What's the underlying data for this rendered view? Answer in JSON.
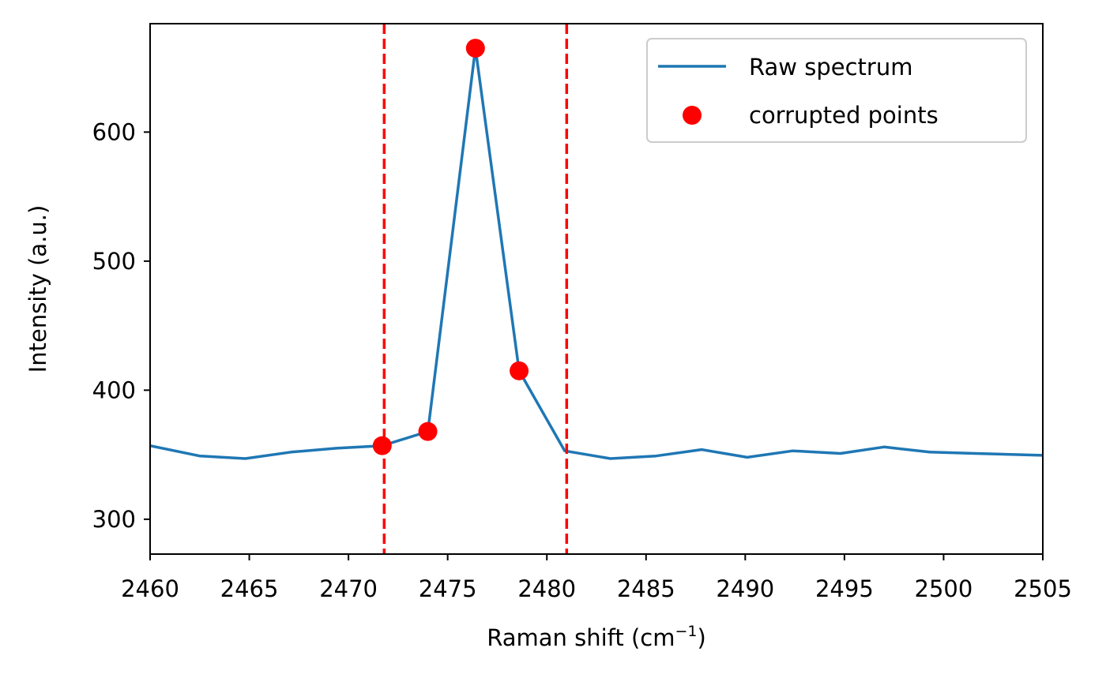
{
  "chart_data": {
    "type": "line",
    "xlabel": "Raman shift (cm",
    "xlabel_superscript": "−1",
    "xlabel_close": ")",
    "ylabel": "Intensity (a.u.)",
    "xlim": [
      2460,
      2505
    ],
    "ylim": [
      273,
      684
    ],
    "xticks": [
      2460,
      2465,
      2470,
      2475,
      2480,
      2485,
      2490,
      2495,
      2500,
      2505
    ],
    "yticks": [
      300,
      400,
      500,
      600
    ],
    "grid": false,
    "legend_position": "top-right",
    "series": [
      {
        "name": "Raw spectrum",
        "color": "#1f77b4",
        "x": [
          2460.0,
          2462.5,
          2464.8,
          2467.1,
          2469.4,
          2471.7,
          2474.0,
          2476.4,
          2478.6,
          2480.9,
          2483.2,
          2485.5,
          2487.8,
          2490.1,
          2492.4,
          2494.8,
          2497.0,
          2499.3,
          2501.6,
          2505.0
        ],
        "y": [
          357,
          349,
          347,
          352,
          355,
          357,
          368,
          665,
          415,
          353,
          347,
          349,
          354,
          348,
          353,
          351,
          356,
          352,
          351,
          349.5
        ]
      }
    ],
    "corrupted_points": {
      "name": "corrupted points",
      "color": "#ff0000",
      "x": [
        2471.7,
        2474.0,
        2476.4,
        2478.6
      ],
      "y": [
        357,
        368,
        665,
        415
      ]
    },
    "vlines": {
      "color": "#ff0000",
      "style": "dashed",
      "x": [
        2471.8,
        2481.0
      ]
    }
  }
}
